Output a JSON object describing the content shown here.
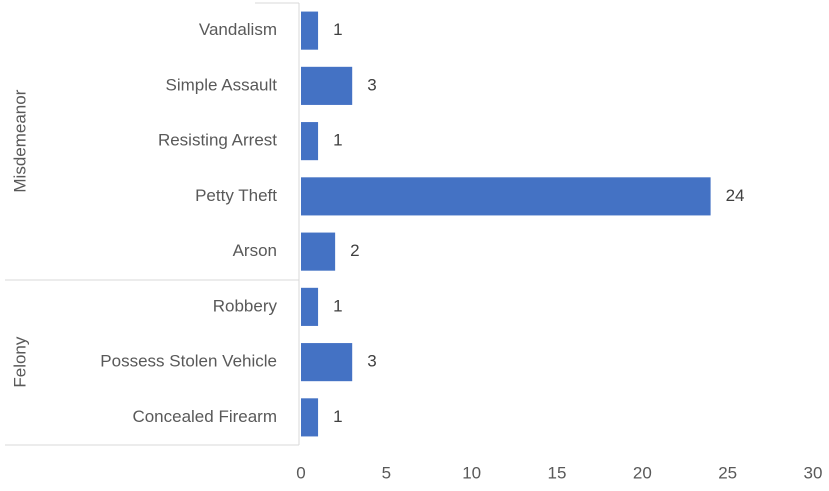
{
  "chart_data": {
    "type": "bar",
    "orientation": "horizontal",
    "color": "#4472c4",
    "groups": [
      {
        "name": "Misdemeanor",
        "categories": [
          "Vandalism",
          "Simple Assault",
          "Resisting Arrest",
          "Petty Theft",
          "Arson"
        ],
        "values": [
          1,
          3,
          1,
          24,
          2
        ]
      },
      {
        "name": "Felony",
        "categories": [
          "Robbery",
          "Possess Stolen Vehicle",
          "Concealed Firearm"
        ],
        "values": [
          1,
          3,
          1
        ]
      }
    ],
    "xlim": [
      0,
      30
    ],
    "xticks": [
      0,
      5,
      10,
      15,
      20,
      25,
      30
    ],
    "grid": false
  }
}
